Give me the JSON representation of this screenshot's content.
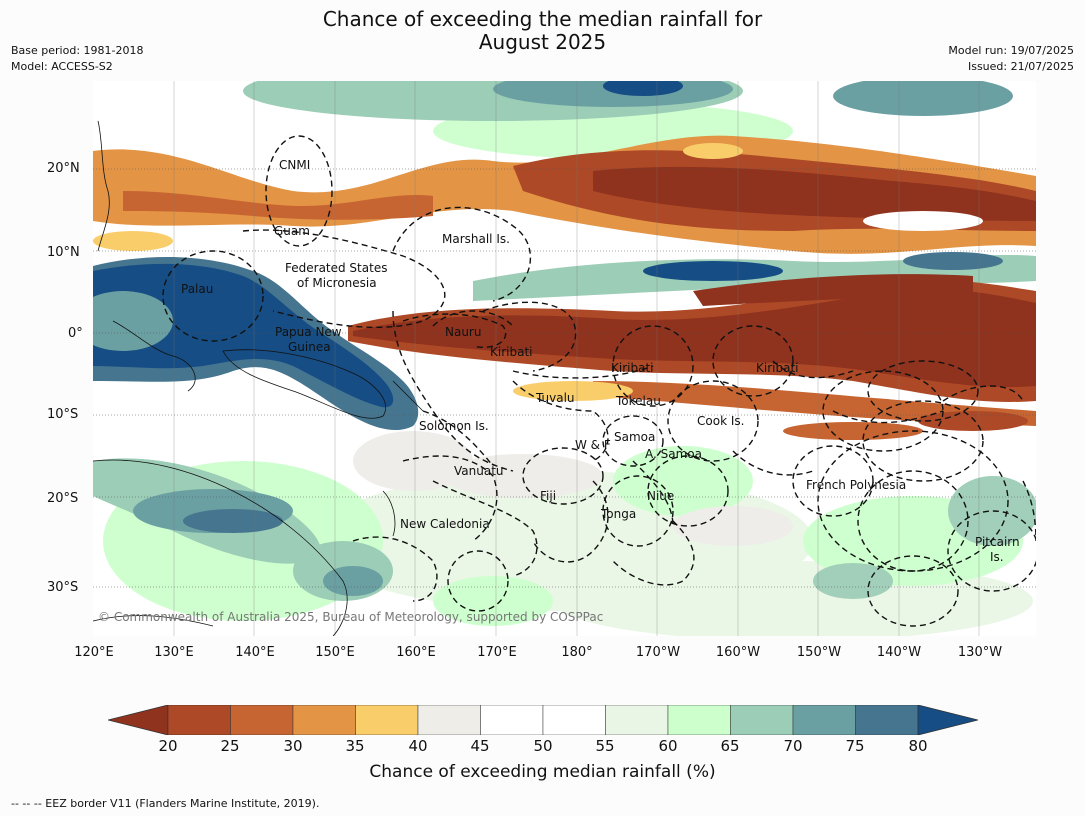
{
  "title_line1": "Chance of exceeding the median rainfall for",
  "title_line2": "August 2025",
  "base_period": "Base period: 1981-2018",
  "model": "Model: ACCESS-S2",
  "model_run": "Model run: 19/07/2025",
  "issued": "Issued: 21/07/2025",
  "lat_ticks": [
    "20°N",
    "10°N",
    "0°",
    "10°S",
    "20°S",
    "30°S"
  ],
  "lon_ticks": [
    "120°E",
    "130°E",
    "140°E",
    "150°E",
    "160°E",
    "170°E",
    "180°",
    "170°W",
    "160°W",
    "150°W",
    "140°W",
    "130°W"
  ],
  "places": [
    "CNMI",
    "Guam",
    "Marshall Is.",
    "Federated States",
    "of Micronesia",
    "Palau",
    "Papua New",
    "Guinea",
    "Nauru",
    "Kiribati",
    "Kiribati",
    "Kiribati",
    "Tuvalu",
    "Tokelau",
    "Solomon Is.",
    "Cook Is.",
    "Samoa",
    "W & F",
    "A. Samoa",
    "Vanuatu",
    "Fiji",
    "Niue",
    "French Polynesia",
    "Tonga",
    "New Caledonia",
    "Pitcairn",
    "Is."
  ],
  "copyright": "© Commonwealth of Australia 2025, Bureau of Meteorology, supported by COSPPac",
  "colorbar_ticks": [
    "20",
    "25",
    "30",
    "35",
    "40",
    "45",
    "50",
    "55",
    "60",
    "65",
    "70",
    "75",
    "80"
  ],
  "colorbar_label": "Chance of exceeding median rainfall (%)",
  "footnote": "--  --  -- EEZ border V11 (Flanders Marine Institute, 2019).",
  "colors": {
    "lt20": "#8f321e",
    "c20_25": "#ad4926",
    "c25_30": "#c76532",
    "c30_35": "#e39445",
    "c35_40": "#f9cd6a",
    "c40_45": "#efede8",
    "c45_55": "#ffffff",
    "c55_60": "#e9f6e5",
    "c60_65": "#ccffcc",
    "c65_70": "#9ccdb6",
    "c70_75": "#6ba0a3",
    "c75_80": "#45758f",
    "gt80": "#164d84"
  }
}
